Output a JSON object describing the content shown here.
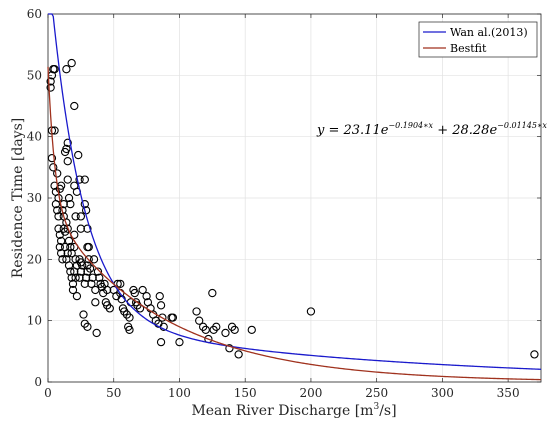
{
  "chart_data": {
    "type": "scatter",
    "xlabel": "Mean River Discharge [m",
    "xlabel_sup": "3",
    "xlabel_tail": "/s]",
    "ylabel": "Residence Time [days]",
    "xlim": [
      0,
      375
    ],
    "ylim": [
      0,
      60
    ],
    "xticks": [
      0,
      50,
      100,
      150,
      200,
      250,
      300,
      350
    ],
    "yticks": [
      0,
      10,
      20,
      30,
      40,
      50,
      60
    ],
    "grid": true,
    "legend_position": "top-right",
    "equation": {
      "lhs": "y = 23.11e",
      "exp1": "−0.1904∗x",
      "mid": " + 28.28e",
      "exp2": "−0.01145∗x"
    },
    "series": [
      {
        "name": "Wan al.(2013)",
        "type": "line",
        "color": "#1a1acc"
      },
      {
        "name": "Bestfit",
        "type": "line",
        "color": "#a0321e"
      },
      {
        "type": "scatter",
        "color": "#000000",
        "points": [
          [
            2,
            49
          ],
          [
            2,
            48
          ],
          [
            3,
            50
          ],
          [
            4,
            51
          ],
          [
            5,
            51
          ],
          [
            3,
            41
          ],
          [
            5,
            41
          ],
          [
            3,
            36.5
          ],
          [
            4,
            35
          ],
          [
            5,
            32
          ],
          [
            6,
            31
          ],
          [
            6,
            29
          ],
          [
            7,
            28
          ],
          [
            8,
            27
          ],
          [
            8,
            25
          ],
          [
            9,
            24
          ],
          [
            9,
            22
          ],
          [
            10,
            23
          ],
          [
            10,
            21
          ],
          [
            11,
            20
          ],
          [
            7,
            34
          ],
          [
            8,
            30
          ],
          [
            9,
            31.5
          ],
          [
            10,
            32
          ],
          [
            11,
            28
          ],
          [
            12,
            29
          ],
          [
            12,
            27
          ],
          [
            12,
            25
          ],
          [
            13,
            24.5
          ],
          [
            13,
            22
          ],
          [
            14,
            51
          ],
          [
            18,
            52
          ],
          [
            13,
            37.5
          ],
          [
            14,
            38
          ],
          [
            15,
            39
          ],
          [
            15,
            36
          ],
          [
            15,
            33
          ],
          [
            16,
            30
          ],
          [
            17,
            29
          ],
          [
            14,
            26
          ],
          [
            15,
            25
          ],
          [
            16,
            23
          ],
          [
            17,
            22
          ],
          [
            18,
            21
          ],
          [
            15,
            21
          ],
          [
            14,
            20
          ],
          [
            16,
            19
          ],
          [
            17,
            18
          ],
          [
            18,
            17
          ],
          [
            19,
            16
          ],
          [
            20,
            45
          ],
          [
            20,
            32
          ],
          [
            22,
            31
          ],
          [
            21,
            27
          ],
          [
            20,
            24
          ],
          [
            20,
            22
          ],
          [
            21,
            20
          ],
          [
            22,
            19
          ],
          [
            20,
            18
          ],
          [
            21,
            17
          ],
          [
            19,
            15
          ],
          [
            22,
            14
          ],
          [
            23,
            37
          ],
          [
            24,
            33
          ],
          [
            25,
            27
          ],
          [
            25,
            25
          ],
          [
            24,
            20
          ],
          [
            25,
            19.5
          ],
          [
            26,
            19
          ],
          [
            25,
            18
          ],
          [
            24,
            17
          ],
          [
            28,
            33
          ],
          [
            28,
            29
          ],
          [
            29,
            28
          ],
          [
            30,
            25
          ],
          [
            30,
            22
          ],
          [
            31,
            20
          ],
          [
            30,
            19
          ],
          [
            30,
            18
          ],
          [
            29,
            17
          ],
          [
            28,
            16
          ],
          [
            27,
            11
          ],
          [
            28,
            9.5
          ],
          [
            30,
            9
          ],
          [
            31,
            22
          ],
          [
            32,
            18.5
          ],
          [
            34,
            17
          ],
          [
            33,
            16
          ],
          [
            35,
            20
          ],
          [
            36,
            15
          ],
          [
            36,
            13
          ],
          [
            37,
            8
          ],
          [
            38,
            18
          ],
          [
            39,
            17
          ],
          [
            40,
            16
          ],
          [
            41,
            15.5
          ],
          [
            42,
            14.5
          ],
          [
            43,
            16
          ],
          [
            45,
            15
          ],
          [
            44,
            13
          ],
          [
            45,
            12.5
          ],
          [
            47,
            12
          ],
          [
            50,
            15
          ],
          [
            52,
            14
          ],
          [
            53,
            16
          ],
          [
            55,
            16
          ],
          [
            55,
            14.5
          ],
          [
            56,
            13.5
          ],
          [
            57,
            12
          ],
          [
            58,
            11.5
          ],
          [
            60,
            11
          ],
          [
            62,
            10.5
          ],
          [
            61,
            9
          ],
          [
            62,
            8.5
          ],
          [
            63,
            13
          ],
          [
            65,
            15
          ],
          [
            66,
            14.5
          ],
          [
            67,
            13
          ],
          [
            68,
            12.5
          ],
          [
            70,
            12
          ],
          [
            72,
            15
          ],
          [
            75,
            14
          ],
          [
            76,
            13
          ],
          [
            78,
            12
          ],
          [
            80,
            11
          ],
          [
            82,
            10
          ],
          [
            84,
            9.5
          ],
          [
            85,
            14
          ],
          [
            86,
            12.5
          ],
          [
            87,
            10.5
          ],
          [
            88,
            9
          ],
          [
            86,
            6.5
          ],
          [
            94,
            10.5
          ],
          [
            95,
            10.5
          ],
          [
            100,
            6.5
          ],
          [
            113,
            11.5
          ],
          [
            115,
            10
          ],
          [
            118,
            9
          ],
          [
            120,
            8.5
          ],
          [
            122,
            7
          ],
          [
            125,
            14.5
          ],
          [
            126,
            8.5
          ],
          [
            128,
            9
          ],
          [
            135,
            8
          ],
          [
            138,
            5.5
          ],
          [
            140,
            9
          ],
          [
            142,
            8.5
          ],
          [
            145,
            4.5
          ],
          [
            155,
            8.5
          ],
          [
            200,
            11.5
          ],
          [
            370,
            4.5
          ]
        ]
      }
    ]
  }
}
